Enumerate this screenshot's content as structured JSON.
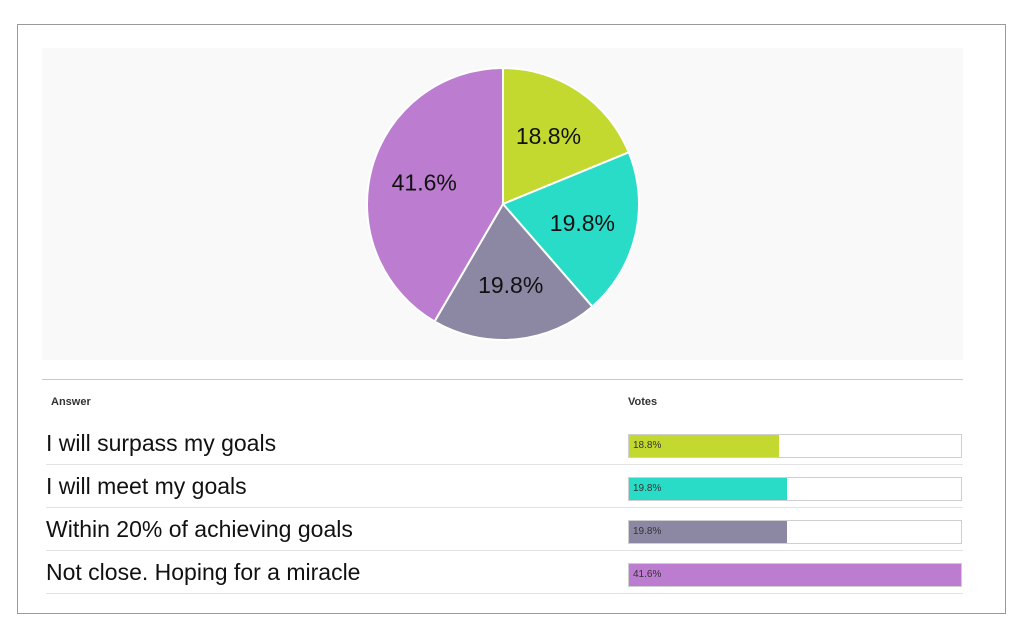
{
  "chart_data": {
    "type": "pie",
    "slices": [
      {
        "label": "I will surpass my goals",
        "value": 18.8,
        "display": "18.8%",
        "color": "#c3d92f"
      },
      {
        "label": "I will meet my goals",
        "value": 19.8,
        "display": "19.8%",
        "color": "#29dcc8"
      },
      {
        "label": "Within 20% of achieving goals",
        "value": 19.8,
        "display": "19.8%",
        "color": "#8c88a3"
      },
      {
        "label": "Not close. Hoping for a miracle",
        "value": 41.6,
        "display": "41.6%",
        "color": "#bc7ccf"
      }
    ]
  },
  "table": {
    "answer_header": "Answer",
    "votes_header": "Votes"
  }
}
